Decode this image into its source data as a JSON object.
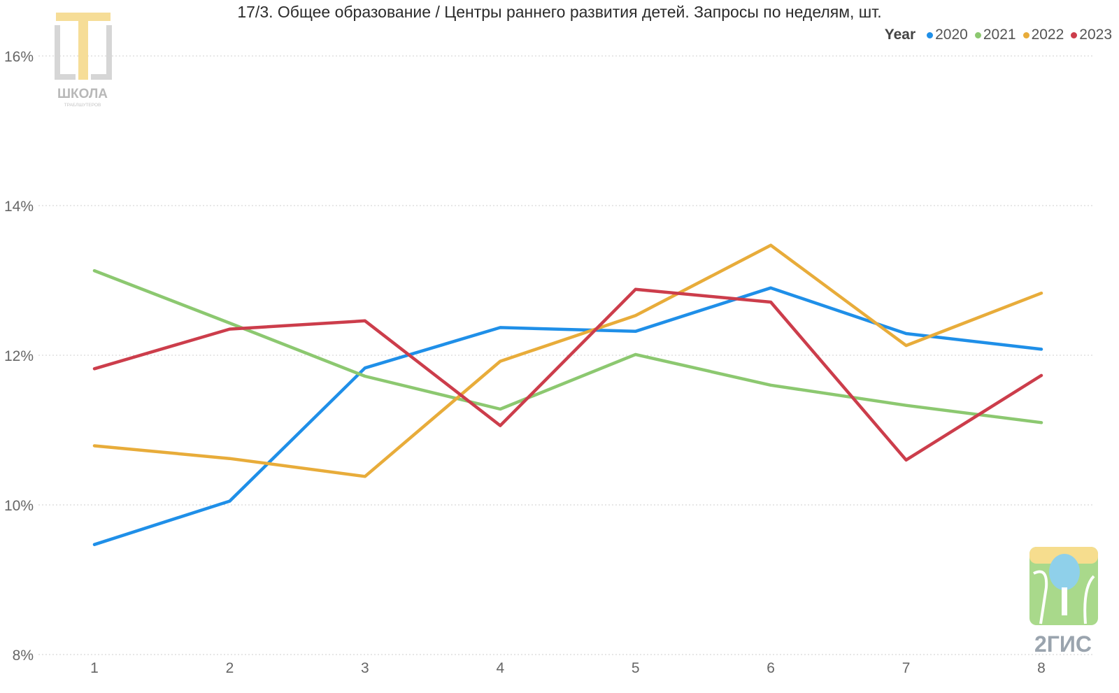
{
  "chart_data": {
    "type": "line",
    "title": "17/3. Общее образование / Центры раннего развития детей. Запросы по неделям, шт.",
    "legend_title": "Year",
    "legend_position": "top-right",
    "grid": true,
    "x": [
      1,
      2,
      3,
      4,
      5,
      6,
      7,
      8
    ],
    "ylim": [
      8,
      16
    ],
    "yticks": [
      "8%",
      "10%",
      "12%",
      "14%",
      "16%"
    ],
    "ytick_values": [
      8,
      10,
      12,
      14,
      16
    ],
    "series": [
      {
        "name": "2020",
        "color": "#1f8fe8",
        "values": [
          9.47,
          10.05,
          11.83,
          12.37,
          12.32,
          12.9,
          12.29,
          12.08
        ]
      },
      {
        "name": "2021",
        "color": "#8cc870",
        "values": [
          13.13,
          12.43,
          11.72,
          11.28,
          12.01,
          11.6,
          11.33,
          11.1
        ]
      },
      {
        "name": "2022",
        "color": "#e8ac3a",
        "values": [
          10.79,
          10.62,
          10.38,
          11.92,
          12.53,
          13.47,
          12.13,
          12.83
        ]
      },
      {
        "name": "2023",
        "color": "#cc3d4b",
        "values": [
          11.82,
          12.35,
          12.46,
          11.06,
          12.88,
          12.71,
          10.6,
          11.73
        ]
      }
    ]
  },
  "logos": {
    "school": {
      "text": "ШКОЛА",
      "subtext": "ТРАБЛШУТЕРОВ"
    },
    "gis": {
      "text": "2ГИС"
    }
  }
}
